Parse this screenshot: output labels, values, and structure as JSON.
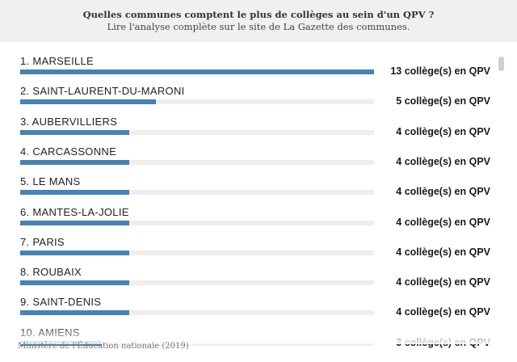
{
  "header": {
    "title": "Quelles communes comptent le plus de collèges au sein d'un QPV ?",
    "subtitle": "Lire l'analyse complète sur le site de La Gazette des communes."
  },
  "source": "Ministère de l'Éducation nationale (2019)",
  "value_unit": "collège(s) en QPV",
  "colors": {
    "bar": "#4682b4",
    "track": "#eeeeee",
    "header_bg": "#f0f0f0"
  },
  "chart_data": {
    "type": "bar",
    "orientation": "horizontal",
    "title": "Quelles communes comptent le plus de collèges au sein d'un QPV ?",
    "subtitle": "Lire l'analyse complète sur le site de La Gazette des communes.",
    "categories": [
      "1. MARSEILLE",
      "2. SAINT-LAURENT-DU-MARONI",
      "3. AUBERVILLIERS",
      "4. CARCASSONNE",
      "5. LE MANS",
      "6. MANTES-LA-JOLIE",
      "7. PARIS",
      "8. ROUBAIX",
      "9. SAINT-DENIS",
      "10. AMIENS"
    ],
    "values": [
      13,
      5,
      4,
      4,
      4,
      4,
      4,
      4,
      4,
      3
    ],
    "xlim": [
      0,
      13
    ],
    "grid": false
  }
}
